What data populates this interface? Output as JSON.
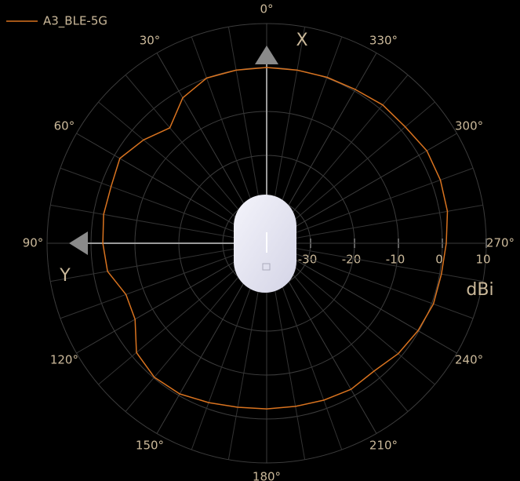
{
  "chart_data": {
    "type": "polar",
    "legend": "top-left",
    "rlim": [
      -40,
      10
    ],
    "rticks": [
      -30,
      -20,
      -10,
      0,
      10
    ],
    "r_label": "dBi",
    "x_axis_label": "X",
    "y_axis_label": "Y",
    "thetaticks": [
      {
        "value": 0,
        "label": "0°"
      },
      {
        "value": 30,
        "label": "30°"
      },
      {
        "value": 60,
        "label": "60°"
      },
      {
        "value": 90,
        "label": "90°"
      },
      {
        "value": 120,
        "label": "120°"
      },
      {
        "value": 150,
        "label": "150°"
      },
      {
        "value": 180,
        "label": "180°"
      },
      {
        "value": 210,
        "label": "210°"
      },
      {
        "value": 240,
        "label": "240°"
      },
      {
        "value": 270,
        "label": "270°"
      },
      {
        "value": 300,
        "label": "300°"
      },
      {
        "value": 330,
        "label": "330°"
      }
    ],
    "theta_minor_ticks": [
      10,
      20,
      40,
      50,
      70,
      80,
      100,
      110,
      130,
      140,
      160,
      170,
      190,
      200,
      220,
      230,
      250,
      260,
      280,
      290,
      310,
      320,
      340,
      350
    ],
    "series": [
      {
        "name": "A3_BLE-5G",
        "color": "#d9731f",
        "theta": [
          0,
          10,
          20,
          30,
          40,
          50,
          60,
          70,
          80,
          90,
          100,
          110,
          120,
          130,
          140,
          150,
          160,
          170,
          180,
          190,
          200,
          210,
          220,
          230,
          240,
          250,
          260,
          270,
          280,
          290,
          300,
          310,
          320,
          330,
          340,
          350
        ],
        "values": [
          0,
          0,
          0,
          -1.8,
          -5.7,
          -3.4,
          -1.4,
          -2.3,
          -2.3,
          -2.7,
          -3.2,
          -5.9,
          -5.4,
          -1.3,
          -0.2,
          -0.4,
          -1.4,
          -2.1,
          -2.3,
          -2.3,
          -2.0,
          -1.6,
          -2.0,
          -0.9,
          -0.2,
          0.4,
          0.4,
          0.9,
          1.8,
          2.1,
          2.1,
          1.2,
          1.1,
          0.4,
          0.2,
          0
        ]
      }
    ]
  }
}
